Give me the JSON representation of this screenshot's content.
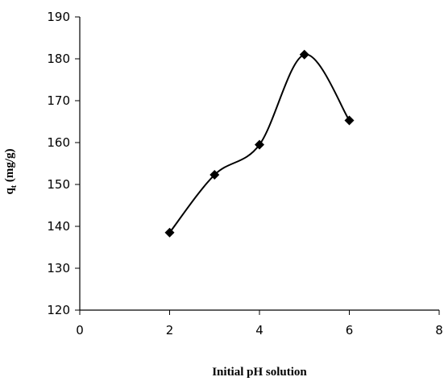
{
  "chart_data": {
    "type": "scatter",
    "title": "",
    "xlabel": "Initial pH solution",
    "ylabel_main": "q",
    "ylabel_sub": "t",
    "ylabel_unit": " (mg/g)",
    "xlim": [
      0,
      8
    ],
    "ylim": [
      120,
      190
    ],
    "xticks": [
      0,
      2,
      4,
      6,
      8
    ],
    "yticks": [
      120,
      130,
      140,
      150,
      160,
      170,
      180,
      190
    ],
    "grid": false,
    "legend": "none",
    "smoothed_line": true,
    "marker": "diamond",
    "color": "#000000",
    "series": [
      {
        "x": [
          2,
          3,
          4,
          5,
          6
        ],
        "y": [
          138.5,
          152.3,
          159.5,
          181.0,
          165.3
        ]
      }
    ]
  }
}
